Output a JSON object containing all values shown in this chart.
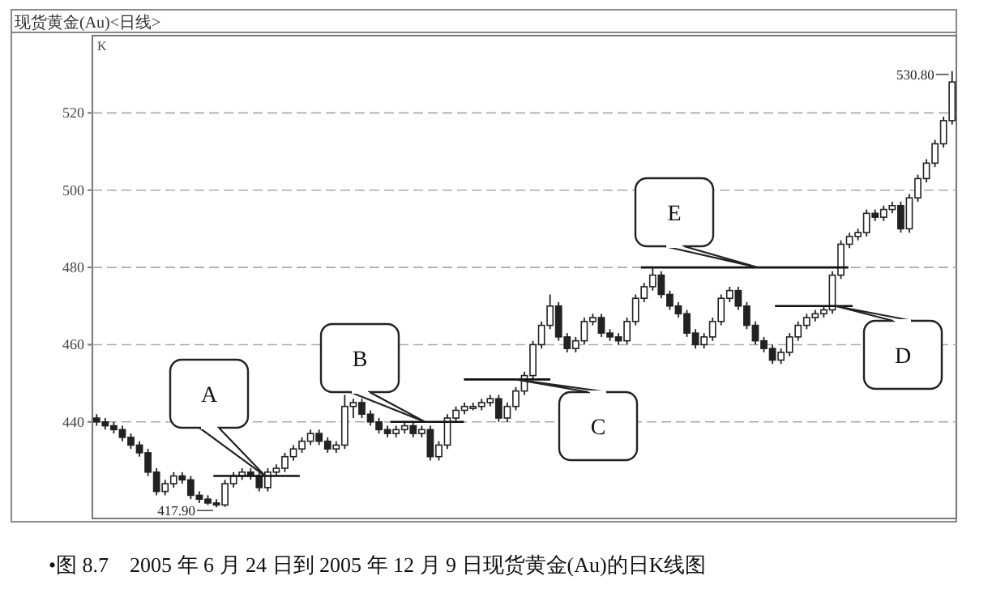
{
  "chart_data": {
    "type": "candlestick",
    "title": "现货黄金(Au)<日线>",
    "ylabel": "K",
    "color": "#222222",
    "categories": [
      null,
      null,
      null,
      null,
      null,
      null,
      null,
      null,
      null,
      null,
      null,
      null,
      null,
      null,
      null,
      null,
      null,
      null,
      null,
      null,
      null,
      null,
      null,
      null,
      null,
      null,
      null,
      null,
      null,
      null,
      null,
      null,
      null,
      null,
      null,
      null,
      null,
      null,
      null,
      null,
      null,
      null,
      null,
      null,
      null,
      null,
      null,
      null,
      null,
      null,
      null,
      null,
      null,
      null,
      null,
      null,
      null,
      null,
      null,
      null,
      null,
      null,
      null,
      null,
      null,
      null,
      null,
      null,
      null,
      null,
      null,
      null,
      null,
      null,
      null,
      null,
      null,
      null,
      null,
      null,
      null,
      null,
      null,
      null,
      null,
      null,
      null,
      null,
      null,
      null,
      null,
      null,
      null,
      null,
      null,
      null,
      null,
      null,
      null,
      null,
      null
    ],
    "ohlc": [
      [
        441,
        442,
        439,
        440
      ],
      [
        440,
        441,
        438,
        439
      ],
      [
        439,
        440,
        437,
        438
      ],
      [
        438,
        439,
        435,
        436
      ],
      [
        436,
        437,
        433,
        434
      ],
      [
        434,
        435,
        431,
        432
      ],
      [
        432,
        433,
        426,
        427
      ],
      [
        427,
        428,
        421,
        422
      ],
      [
        422,
        425,
        421,
        424
      ],
      [
        424,
        427,
        423,
        426
      ],
      [
        426,
        427,
        424,
        425
      ],
      [
        425,
        426,
        420,
        421
      ],
      [
        421,
        422,
        419,
        420
      ],
      [
        420,
        421,
        418.5,
        419
      ],
      [
        419,
        420,
        417.9,
        418.5
      ],
      [
        418.5,
        425,
        418,
        424
      ],
      [
        424,
        427,
        423,
        426
      ],
      [
        426,
        428,
        425,
        427
      ],
      [
        427,
        428,
        425,
        426
      ],
      [
        426,
        427,
        422,
        423
      ],
      [
        423,
        428,
        422,
        427
      ],
      [
        427,
        429,
        426,
        428
      ],
      [
        428,
        432,
        427,
        431
      ],
      [
        431,
        434,
        430,
        433
      ],
      [
        433,
        436,
        432,
        435
      ],
      [
        435,
        438,
        434,
        437
      ],
      [
        437,
        438,
        434,
        435
      ],
      [
        435,
        436,
        432,
        433
      ],
      [
        433,
        435,
        432,
        434
      ],
      [
        434,
        447,
        433,
        444
      ],
      [
        444,
        446,
        441,
        445
      ],
      [
        445,
        446,
        441,
        442
      ],
      [
        442,
        443,
        439,
        440
      ],
      [
        440,
        441,
        437,
        438
      ],
      [
        438,
        439,
        436,
        437
      ],
      [
        437,
        439,
        436,
        438
      ],
      [
        438,
        440,
        437,
        439
      ],
      [
        439,
        440,
        436,
        437
      ],
      [
        437,
        439,
        436,
        438
      ],
      [
        438,
        439,
        430,
        431
      ],
      [
        431,
        435,
        430,
        434
      ],
      [
        434,
        442,
        433,
        441
      ],
      [
        441,
        444,
        440,
        443
      ],
      [
        443,
        445,
        442,
        444
      ],
      [
        443.5,
        445,
        443,
        444
      ],
      [
        444,
        446,
        443,
        445
      ],
      [
        445,
        447,
        444,
        446
      ],
      [
        446,
        447,
        440,
        441
      ],
      [
        441,
        445,
        440,
        444
      ],
      [
        444,
        449,
        443,
        448
      ],
      [
        448,
        453,
        447,
        452
      ],
      [
        452,
        461,
        451,
        460
      ],
      [
        460,
        466,
        459,
        465
      ],
      [
        465,
        473,
        464,
        470
      ],
      [
        470,
        471,
        461,
        462
      ],
      [
        462,
        463,
        458,
        459
      ],
      [
        459,
        462,
        458,
        461
      ],
      [
        461,
        467,
        460,
        466
      ],
      [
        466,
        468,
        465,
        467
      ],
      [
        467,
        468,
        462,
        463
      ],
      [
        463,
        464,
        461,
        462
      ],
      [
        462,
        463,
        460,
        461
      ],
      [
        461,
        467,
        460,
        466
      ],
      [
        466,
        473,
        465,
        472
      ],
      [
        472,
        476,
        471,
        475
      ],
      [
        475,
        480,
        474,
        478
      ],
      [
        478,
        479,
        472,
        473
      ],
      [
        473,
        474,
        469,
        470
      ],
      [
        470,
        471,
        467,
        468
      ],
      [
        468,
        469,
        462,
        463
      ],
      [
        463,
        464,
        459,
        460
      ],
      [
        460,
        463,
        459,
        462
      ],
      [
        462,
        467,
        461,
        466
      ],
      [
        466,
        473,
        465,
        472
      ],
      [
        472,
        475,
        471,
        474
      ],
      [
        474,
        475,
        469,
        470
      ],
      [
        470,
        471,
        464,
        465
      ],
      [
        465,
        466,
        460,
        461
      ],
      [
        461,
        462,
        458,
        459
      ],
      [
        459,
        460,
        455,
        456
      ],
      [
        456,
        459,
        455,
        458
      ],
      [
        458,
        463,
        457,
        462
      ],
      [
        462,
        466,
        461,
        465
      ],
      [
        465,
        468,
        464,
        467
      ],
      [
        467,
        469,
        466,
        468
      ],
      [
        468,
        470,
        467,
        469
      ],
      [
        469,
        479,
        468,
        478
      ],
      [
        478,
        487,
        477,
        486
      ],
      [
        486,
        489,
        485,
        488
      ],
      [
        488,
        490,
        487,
        489
      ],
      [
        489,
        495,
        488,
        494
      ],
      [
        494,
        495,
        492,
        493
      ],
      [
        493,
        496,
        492,
        495
      ],
      [
        495,
        497,
        494,
        496
      ],
      [
        496,
        497,
        489,
        490
      ],
      [
        490,
        499,
        489,
        498
      ],
      [
        498,
        504,
        497,
        503
      ],
      [
        503,
        508,
        502,
        507
      ],
      [
        507,
        513,
        506,
        512
      ],
      [
        512,
        519,
        511,
        518
      ],
      [
        518,
        530.8,
        517,
        528
      ]
    ],
    "ylim": [
      415,
      540
    ],
    "yticks": [
      440,
      460,
      480,
      500,
      520
    ],
    "grid": "y",
    "ref_lines": [
      {
        "axis": "y",
        "value": 426,
        "label": "A"
      },
      {
        "axis": "y",
        "value": 440,
        "label": "B"
      },
      {
        "axis": "y",
        "value": 451,
        "label": "C"
      },
      {
        "axis": "y",
        "value": 470,
        "label": "D"
      },
      {
        "axis": "y",
        "value": 480,
        "label": "E"
      }
    ],
    "annotations": [
      "417.90",
      "530.80",
      "•图 8.7　2005 年 6 月 24 日到 2005 年 12 月 9 日现货黄金(Au)的日K线图"
    ]
  }
}
